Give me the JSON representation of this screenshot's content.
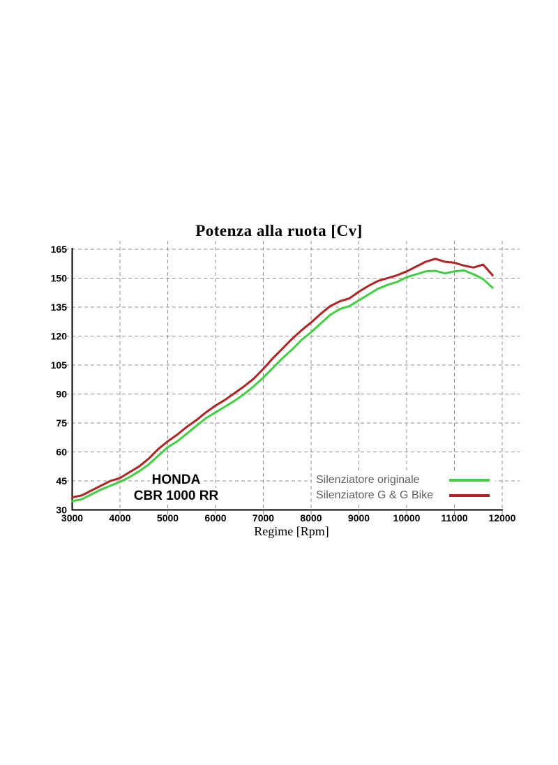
{
  "page": {
    "background": "#ffffff"
  },
  "chart_data": {
    "type": "line",
    "title": "Potenza alla ruota [Cv]",
    "xlabel": "Regime [Rpm]",
    "ylabel": "",
    "xlim": [
      3000,
      12000
    ],
    "ylim": [
      30,
      165
    ],
    "x_ticks": [
      3000,
      4000,
      5000,
      6000,
      7000,
      8000,
      9000,
      10000,
      11000,
      12000
    ],
    "y_ticks": [
      30,
      45,
      60,
      75,
      90,
      105,
      120,
      135,
      150,
      165
    ],
    "grid": true,
    "grid_color": "#8c8c8c",
    "legend_position": "inside-bottom-right",
    "annotation_line1": "HONDA",
    "annotation_line2": "CBR 1000 RR",
    "x": [
      3000,
      3200,
      3400,
      3600,
      3800,
      4000,
      4200,
      4400,
      4600,
      4800,
      5000,
      5200,
      5400,
      5600,
      5800,
      6000,
      6200,
      6400,
      6600,
      6800,
      7000,
      7200,
      7400,
      7600,
      7800,
      8000,
      8200,
      8400,
      8600,
      8800,
      9000,
      9200,
      9400,
      9600,
      9800,
      10000,
      10200,
      10400,
      10600,
      10800,
      11000,
      11200,
      11400,
      11600,
      11800
    ],
    "series": [
      {
        "name": "Silenziatore originale",
        "color": "#3fd03f",
        "values": [
          34.5,
          35.5,
          38,
          40.5,
          42.5,
          44.5,
          47,
          50,
          53.5,
          58,
          62.5,
          65.5,
          69.5,
          73.5,
          77.5,
          80.5,
          83.5,
          86.5,
          90,
          94,
          98.5,
          103.5,
          108.5,
          113,
          118,
          122,
          126.5,
          131,
          134,
          135.5,
          138.5,
          141.5,
          144.5,
          146.5,
          148,
          150.5,
          152,
          153.5,
          153.8,
          152.5,
          153.5,
          154,
          152,
          149.5,
          145
        ]
      },
      {
        "name": "Silenziatore G & G Bike",
        "color": "#b22222",
        "values": [
          36.5,
          37.5,
          40,
          42.5,
          45,
          46.5,
          49.5,
          52.5,
          56.5,
          61.5,
          65.5,
          69,
          73,
          76.5,
          80.5,
          84,
          87,
          90.5,
          94,
          98,
          103,
          108.5,
          113.5,
          118.5,
          123,
          127,
          131.5,
          135.5,
          138,
          139.5,
          143,
          146,
          148.5,
          150,
          151.5,
          153.5,
          156,
          158.5,
          160,
          158.5,
          158,
          156.5,
          155.5,
          157,
          151.5
        ]
      }
    ]
  }
}
